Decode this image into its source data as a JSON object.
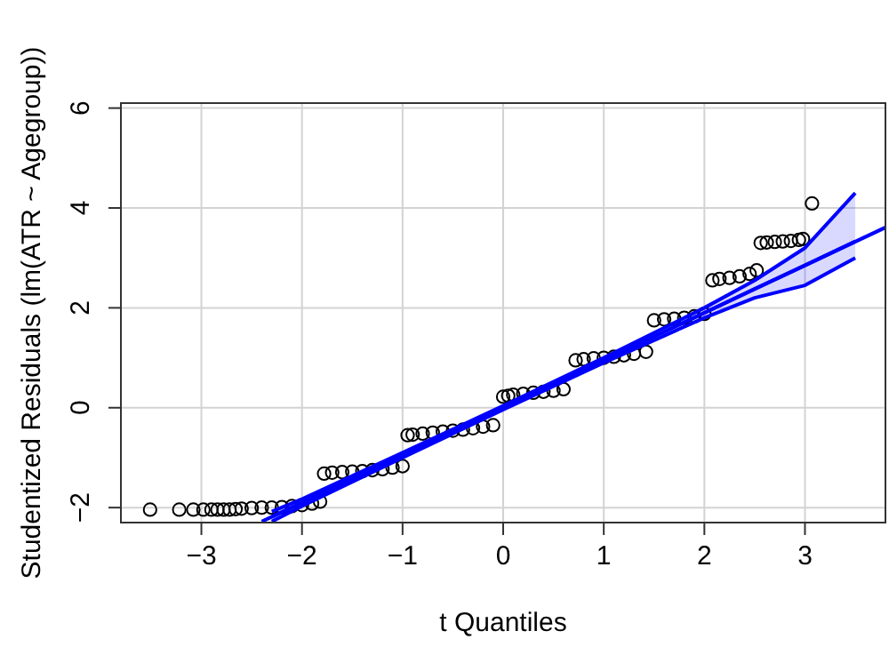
{
  "chart_data": {
    "type": "scatter",
    "xlabel": "t Quantiles",
    "ylabel": "Studentized Residuals (lm(ATR ~ Agegroup))",
    "xlim": [
      -3.8,
      3.8
    ],
    "ylim": [
      -2.3,
      6.1
    ],
    "xticks": [
      -3,
      -2,
      -1,
      0,
      1,
      2,
      3
    ],
    "yticks": [
      -2,
      0,
      2,
      4,
      6
    ],
    "grid": true,
    "series": [
      {
        "marker": "circle",
        "color": "#000000",
        "x": [
          -3.51,
          -3.22,
          -3.08,
          -2.98,
          -2.9,
          -2.84,
          -2.78,
          -2.72,
          -2.66,
          -2.6,
          -2.5,
          -2.4,
          -2.3,
          -2.2,
          -2.1,
          -2.0,
          -1.9,
          -1.82,
          -1.78,
          -1.7,
          -1.6,
          -1.5,
          -1.4,
          -1.3,
          -1.2,
          -1.1,
          -1.0,
          -0.95,
          -0.9,
          -0.8,
          -0.7,
          -0.6,
          -0.5,
          -0.4,
          -0.3,
          -0.2,
          -0.1,
          0.0,
          0.05,
          0.1,
          0.2,
          0.3,
          0.4,
          0.5,
          0.6,
          0.72,
          0.8,
          0.9,
          1.0,
          1.1,
          1.2,
          1.3,
          1.42,
          1.5,
          1.6,
          1.7,
          1.8,
          1.9,
          2.0,
          2.08,
          2.15,
          2.25,
          2.35,
          2.45,
          2.52,
          2.56,
          2.62,
          2.7,
          2.78,
          2.86,
          2.94,
          2.98,
          3.07
        ],
        "values": [
          -2.04,
          -2.04,
          -2.04,
          -2.04,
          -2.04,
          -2.04,
          -2.04,
          -2.04,
          -2.03,
          -2.02,
          -2.01,
          -2.0,
          -2.0,
          -1.99,
          -1.97,
          -1.95,
          -1.92,
          -1.88,
          -1.32,
          -1.3,
          -1.29,
          -1.28,
          -1.27,
          -1.25,
          -1.23,
          -1.2,
          -1.17,
          -0.55,
          -0.54,
          -0.52,
          -0.5,
          -0.48,
          -0.46,
          -0.44,
          -0.41,
          -0.38,
          -0.35,
          0.22,
          0.24,
          0.26,
          0.28,
          0.3,
          0.32,
          0.34,
          0.37,
          0.95,
          0.97,
          0.99,
          1.0,
          1.02,
          1.05,
          1.08,
          1.12,
          1.75,
          1.77,
          1.78,
          1.8,
          1.83,
          1.88,
          2.55,
          2.58,
          2.6,
          2.63,
          2.68,
          2.75,
          3.3,
          3.31,
          3.32,
          3.33,
          3.34,
          3.36,
          3.38,
          4.09
        ]
      },
      {
        "type": "line",
        "color": "#0000ff",
        "x": [
          -2.4,
          3.8
        ],
        "values": [
          -2.28,
          3.61
        ]
      },
      {
        "type": "line",
        "color": "#0000ff",
        "x": [
          -2.3,
          -2,
          -1,
          0,
          1,
          2,
          2.5,
          3,
          3.5
        ],
        "values": [
          -2.19,
          -1.9,
          -0.95,
          0,
          0.95,
          1.9,
          2.38,
          2.85,
          3.33
        ],
        "lower": [
          -2.28,
          -1.97,
          -1.0,
          -0.04,
          0.9,
          1.8,
          2.2,
          2.45,
          3.0
        ],
        "upper": [
          -2.08,
          -1.83,
          -0.9,
          0.04,
          1.0,
          2.0,
          2.55,
          3.2,
          4.3
        ]
      },
      {
        "type": "line",
        "color": "#0000ff",
        "x": [
          -2.3,
          -2,
          -1,
          0,
          1,
          2,
          2.5,
          3,
          3.5
        ],
        "values": [
          -2.28,
          -1.97,
          -1.0,
          -0.04,
          0.9,
          1.8,
          2.2,
          2.45,
          3.0
        ]
      },
      {
        "type": "line",
        "color": "#0000ff",
        "x": [
          -2.3,
          -2,
          -1,
          0,
          1,
          2,
          2.5,
          3,
          3.5
        ],
        "values": [
          -2.08,
          -1.83,
          -0.9,
          0.04,
          1.0,
          2.0,
          2.55,
          3.2,
          4.3
        ]
      }
    ]
  }
}
